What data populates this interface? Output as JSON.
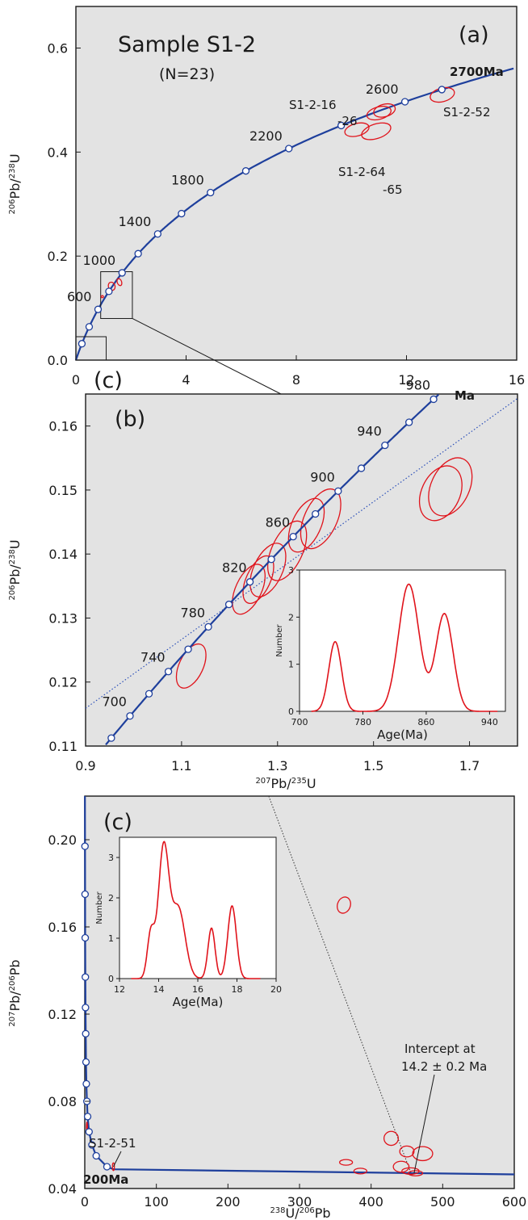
{
  "colors": {
    "panel_bg": "#e3e3e3",
    "concordia": "#1e3f9c",
    "ellipse": "#e0131b",
    "marker_fill": "#ffffff",
    "dotted_line": "#2b4fb8",
    "axis": "#1a1a1a"
  },
  "panel_a": {
    "title": "Sample S1-2",
    "subtitle": "(N=23)",
    "panel_label": "(a)",
    "inset_ref": "(c)",
    "ylabel": "206Pb/238U",
    "ylabel_main": "Pb/",
    "ylabel_sup1": "206",
    "ylabel_sup2": "238",
    "ylabel_end": "U",
    "xtick_labels": [
      "0",
      "4",
      "8",
      "12",
      "16"
    ],
    "ytick_labels": [
      "0.0",
      "0.2",
      "0.4",
      "0.6"
    ],
    "annotations": {
      "age_2700": "2700Ma",
      "s16_line1": "S1-2-16",
      "s16_line2": "-26",
      "s64_line1": "S1-2-64",
      "s64_line2": "-65",
      "s52": "S1-2-52"
    }
  },
  "panel_b": {
    "panel_label": "(b)",
    "xlabel": "207Pb/235U",
    "xlabel_sup1": "207",
    "xlabel_main": "Pb/",
    "xlabel_sup2": "235",
    "xlabel_end": "U",
    "ylabel_sup1": "206",
    "ylabel_main": "Pb/",
    "ylabel_sup2": "238",
    "ylabel_end": "U",
    "xtick_labels": [
      "0.9",
      "1.1",
      "1.3",
      "1.5",
      "1.7"
    ],
    "ytick_labels": [
      "0.11",
      "0.12",
      "0.13",
      "0.14",
      "0.15",
      "0.16"
    ],
    "age_980_suffix": "Ma",
    "inset": {
      "ylabel": "Number",
      "xlabel": "Age(Ma)",
      "xtick_labels": [
        "700",
        "780",
        "860",
        "940"
      ],
      "ytick_labels": [
        "0",
        "1",
        "2",
        "3"
      ]
    }
  },
  "panel_c": {
    "panel_label": "(c)",
    "xlabel_sup1": "238",
    "xlabel_main": "U/",
    "xlabel_sup2": "206",
    "xlabel_end": "Pb",
    "ylabel_sup1": "207",
    "ylabel_main": "Pb/",
    "ylabel_sup2": "206",
    "ylabel_end": "Pb",
    "xtick_labels": [
      "0",
      "100",
      "200",
      "300",
      "400",
      "500",
      "600"
    ],
    "ytick_labels": [
      "0.04",
      "0.08",
      "0.12",
      "0.16",
      "0.20"
    ],
    "label_s51": "S1-2-51",
    "label_200": "200",
    "label_200_suffix": "Ma",
    "intercept_line1": "Intercept at",
    "intercept_line2": "14.2 ± 0.2 Ma",
    "inset": {
      "ylabel": "Number",
      "xlabel": "Age(Ma)",
      "xtick_labels": [
        "12",
        "14",
        "16",
        "18",
        "20"
      ],
      "ytick_labels": [
        "0",
        "1",
        "2",
        "3"
      ]
    }
  },
  "chart_data": [
    {
      "type": "line",
      "panel": "a",
      "title": "Sample S1-2",
      "subtitle": "(N=23)",
      "xlabel": "",
      "ylabel": "206Pb/238U",
      "xlim": [
        0,
        16
      ],
      "ylim": [
        0,
        0.68
      ],
      "xticks": [
        0,
        4,
        8,
        12,
        16
      ],
      "yticks": [
        0,
        0.2,
        0.4,
        0.6
      ],
      "grid": false,
      "concordia_ages_Ma": [
        200,
        400,
        600,
        800,
        1000,
        1200,
        1400,
        1600,
        1800,
        2000,
        2200,
        2400,
        2600,
        2700
      ],
      "age_labels_Ma": [
        600,
        1000,
        1400,
        1800,
        2200,
        2600
      ],
      "ellipses": [
        {
          "x": 0.96,
          "y": 0.122,
          "rx": 0.04,
          "ry": 0.002,
          "angle": 20
        },
        {
          "x": 1.3,
          "y": 0.142,
          "rx": 0.12,
          "ry": 0.008,
          "angle": 20
        },
        {
          "x": 1.58,
          "y": 0.15,
          "rx": 0.08,
          "ry": 0.007,
          "angle": 20
        },
        {
          "x": 10.2,
          "y": 0.443,
          "rx": 0.45,
          "ry": 0.012,
          "angle": 15
        },
        {
          "x": 10.9,
          "y": 0.44,
          "rx": 0.55,
          "ry": 0.014,
          "angle": 18
        },
        {
          "x": 11.0,
          "y": 0.475,
          "rx": 0.45,
          "ry": 0.012,
          "angle": 15
        },
        {
          "x": 11.2,
          "y": 0.48,
          "rx": 0.4,
          "ry": 0.012,
          "angle": 15
        },
        {
          "x": 13.3,
          "y": 0.51,
          "rx": 0.45,
          "ry": 0.013,
          "angle": 15
        }
      ],
      "zoom_boxes": [
        {
          "label": "(b)",
          "x0": 0.9,
          "x1": 2.05,
          "y0": 0.08,
          "y1": 0.17
        },
        {
          "label": "(c)",
          "x0": 0,
          "x1": 1.1,
          "y0": 0,
          "y1": 0.045
        }
      ]
    },
    {
      "type": "line",
      "panel": "b",
      "xlabel": "207Pb/235U",
      "ylabel": "206Pb/238U",
      "xlim": [
        0.9,
        1.8
      ],
      "ylim": [
        0.11,
        0.165
      ],
      "xticks": [
        0.9,
        1.1,
        1.3,
        1.5,
        1.7
      ],
      "yticks": [
        0.11,
        0.12,
        0.13,
        0.14,
        0.15,
        0.16
      ],
      "grid": false,
      "concordia_ages_Ma": [
        680,
        700,
        720,
        740,
        760,
        780,
        800,
        820,
        840,
        860,
        880,
        900,
        920,
        940,
        960,
        980
      ],
      "age_labels_Ma": [
        700,
        740,
        780,
        820,
        860,
        900,
        940,
        980
      ],
      "ellipses": [
        {
          "x": 1.12,
          "y": 0.1225,
          "rx": 0.025,
          "ry": 0.0037,
          "angle": -25
        },
        {
          "x": 1.24,
          "y": 0.1345,
          "rx": 0.027,
          "ry": 0.0042,
          "angle": -25
        },
        {
          "x": 1.26,
          "y": 0.136,
          "rx": 0.025,
          "ry": 0.004,
          "angle": -25
        },
        {
          "x": 1.28,
          "y": 0.1375,
          "rx": 0.03,
          "ry": 0.0045,
          "angle": -25
        },
        {
          "x": 1.32,
          "y": 0.1405,
          "rx": 0.032,
          "ry": 0.005,
          "angle": -25
        },
        {
          "x": 1.36,
          "y": 0.1445,
          "rx": 0.03,
          "ry": 0.0045,
          "angle": -25
        },
        {
          "x": 1.39,
          "y": 0.1455,
          "rx": 0.034,
          "ry": 0.005,
          "angle": -25
        },
        {
          "x": 1.64,
          "y": 0.1495,
          "rx": 0.04,
          "ry": 0.0045,
          "angle": -25
        },
        {
          "x": 1.66,
          "y": 0.1505,
          "rx": 0.04,
          "ry": 0.0048,
          "angle": -25
        }
      ],
      "discordia_line": {
        "x": [
          0.9,
          1.8
        ],
        "y": [
          0.1159,
          0.1643
        ]
      },
      "inset_histogram": {
        "xlabel": "Age(Ma)",
        "ylabel": "Number",
        "xlim": [
          700,
          960
        ],
        "ylim": [
          0,
          3
        ],
        "xticks": [
          700,
          780,
          860,
          940
        ],
        "yticks": [
          0,
          1,
          2,
          3
        ],
        "peaks": [
          {
            "age": 745,
            "height": 1.48,
            "sigma": 8
          },
          {
            "age": 838,
            "height": 2.7,
            "sigma": 13
          },
          {
            "age": 883,
            "height": 2.07,
            "sigma": 11
          }
        ]
      }
    },
    {
      "type": "line",
      "panel": "c",
      "xlabel": "238U/206Pb",
      "ylabel": "207Pb/206Pb",
      "xlim": [
        0,
        600
      ],
      "ylim": [
        0.04,
        0.22
      ],
      "xticks": [
        0,
        100,
        200,
        300,
        400,
        500,
        600
      ],
      "yticks": [
        0.04,
        0.08,
        0.12,
        0.16,
        0.2
      ],
      "grid": false,
      "concordia_markers": [
        {
          "x": 0.3,
          "y": 0.197
        },
        {
          "x": 0.4,
          "y": 0.175
        },
        {
          "x": 0.6,
          "y": 0.155
        },
        {
          "x": 0.8,
          "y": 0.137
        },
        {
          "x": 1.0,
          "y": 0.123
        },
        {
          "x": 1.3,
          "y": 0.111
        },
        {
          "x": 1.7,
          "y": 0.098
        },
        {
          "x": 2.2,
          "y": 0.088
        },
        {
          "x": 3,
          "y": 0.08
        },
        {
          "x": 4,
          "y": 0.073
        },
        {
          "x": 6,
          "y": 0.066
        },
        {
          "x": 10,
          "y": 0.06
        },
        {
          "x": 16,
          "y": 0.055
        },
        {
          "x": 31,
          "y": 0.05
        }
      ],
      "ellipses": [
        {
          "x": 3,
          "y": 0.068,
          "rx": 0.7,
          "ry": 0.0025,
          "angle": 0
        },
        {
          "x": 40,
          "y": 0.05,
          "rx": 1.4,
          "ry": 0.0018,
          "angle": 0
        },
        {
          "x": 362,
          "y": 0.17,
          "rx": 9,
          "ry": 0.0038,
          "angle": -20
        },
        {
          "x": 365,
          "y": 0.052,
          "rx": 9,
          "ry": 0.0013,
          "angle": 0
        },
        {
          "x": 385,
          "y": 0.048,
          "rx": 9,
          "ry": 0.0013,
          "angle": 0
        },
        {
          "x": 428,
          "y": 0.063,
          "rx": 10,
          "ry": 0.0032,
          "angle": 0
        },
        {
          "x": 442,
          "y": 0.05,
          "rx": 11,
          "ry": 0.0025,
          "angle": 0
        },
        {
          "x": 450,
          "y": 0.057,
          "rx": 10,
          "ry": 0.0025,
          "angle": 0
        },
        {
          "x": 455,
          "y": 0.048,
          "rx": 12,
          "ry": 0.0015,
          "angle": 0
        },
        {
          "x": 462,
          "y": 0.047,
          "rx": 10,
          "ry": 0.0012,
          "angle": 0
        },
        {
          "x": 472,
          "y": 0.056,
          "rx": 14,
          "ry": 0.0032,
          "angle": 0
        }
      ],
      "regression_line": {
        "x": [
          257,
          457
        ],
        "y": [
          0.22,
          0.046
        ]
      },
      "concordia_tail": {
        "x": [
          40,
          600
        ],
        "y": [
          0.0488,
          0.0465
        ]
      },
      "inset_histogram": {
        "xlabel": "Age(Ma)",
        "ylabel": "Number",
        "xlim": [
          12,
          20
        ],
        "ylim": [
          0,
          3.5
        ],
        "xticks": [
          12,
          14,
          16,
          18,
          20
        ],
        "yticks": [
          0,
          1,
          2,
          3
        ],
        "peaks": [
          {
            "age": 13.6,
            "height": 1.1,
            "sigma": 0.18
          },
          {
            "age": 14.25,
            "height": 3.2,
            "sigma": 0.27
          },
          {
            "age": 15.0,
            "height": 1.75,
            "sigma": 0.35
          },
          {
            "age": 16.7,
            "height": 1.25,
            "sigma": 0.18
          },
          {
            "age": 17.75,
            "height": 1.8,
            "sigma": 0.22
          }
        ]
      }
    }
  ]
}
